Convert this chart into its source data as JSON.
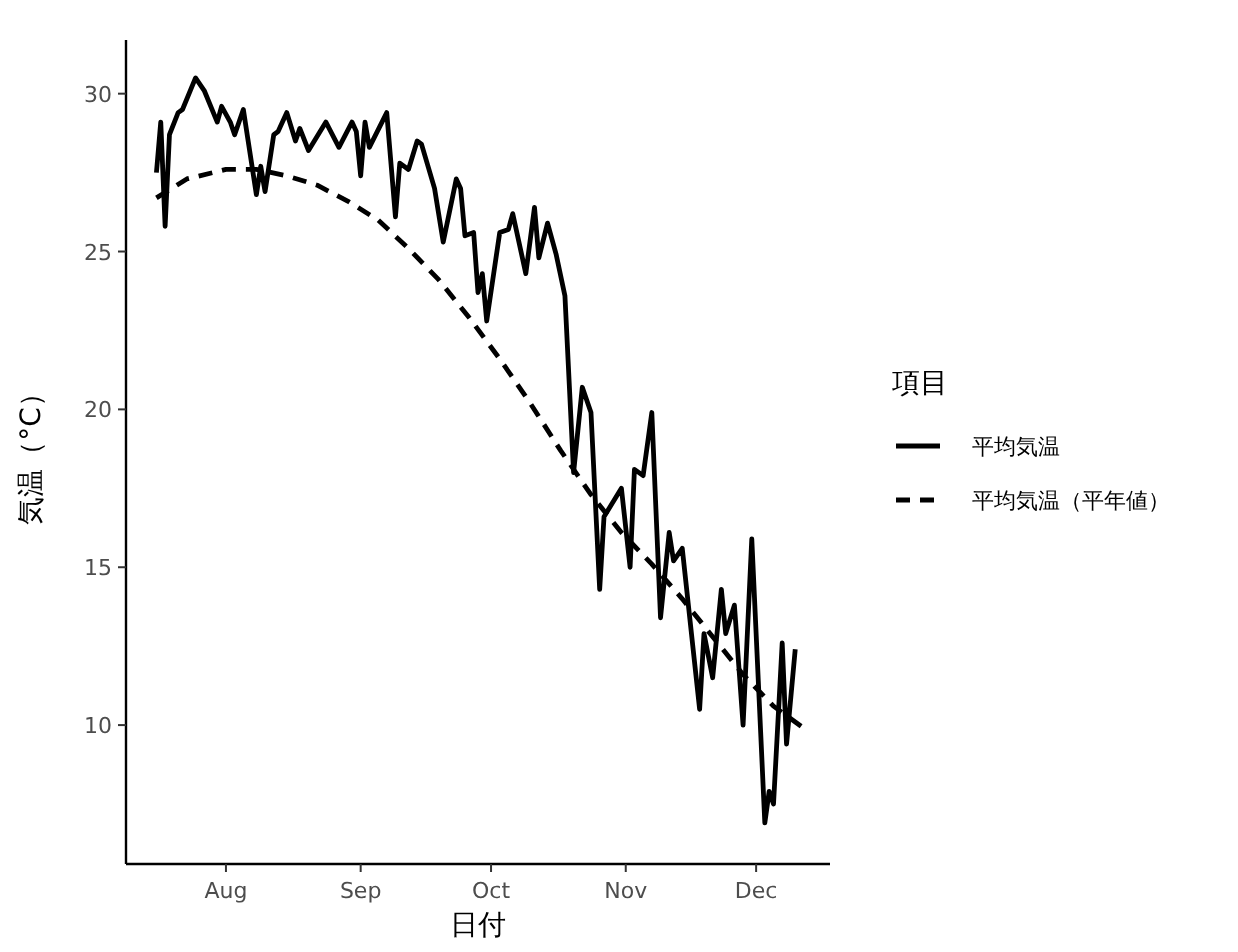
{
  "chart_data": {
    "type": "line",
    "xlabel": "日付",
    "ylabel": "気温（°C）",
    "legend_title": "項目",
    "legend": "right",
    "grid": false,
    "marker": "none",
    "xlim": [
      "--07-09",
      "--12-18"
    ],
    "xticks": [
      {
        "value": "--08-01",
        "label": "Aug"
      },
      {
        "value": "--09-01",
        "label": "Sep"
      },
      {
        "value": "--10-01",
        "label": "Oct"
      },
      {
        "value": "--11-01",
        "label": "Nov"
      },
      {
        "value": "--12-01",
        "label": "Dec"
      }
    ],
    "ylim": [
      5.6,
      31.7
    ],
    "yticks": [
      10,
      15,
      20,
      25,
      30
    ],
    "series": [
      {
        "name": "平均気温",
        "color": "#000000",
        "line_style": "solid",
        "x": [
          "--07-16",
          "--07-17",
          "--07-18",
          "--07-19",
          "--07-21",
          "--07-22",
          "--07-25",
          "--07-27",
          "--07-30",
          "--07-31",
          "--08-02",
          "--08-03",
          "--08-05",
          "--08-06",
          "--08-08",
          "--08-09",
          "--08-10",
          "--08-12",
          "--08-13",
          "--08-15",
          "--08-17",
          "--08-18",
          "--08-20",
          "--08-24",
          "--08-27",
          "--08-30",
          "--08-31",
          "--09-01",
          "--09-02",
          "--09-03",
          "--09-07",
          "--09-09",
          "--09-10",
          "--09-12",
          "--09-14",
          "--09-15",
          "--09-18",
          "--09-20",
          "--09-23",
          "--09-24",
          "--09-25",
          "--09-27",
          "--09-28",
          "--09-29",
          "--09-30",
          "--10-03",
          "--10-05",
          "--10-06",
          "--10-09",
          "--10-11",
          "--10-12",
          "--10-14",
          "--10-16",
          "--10-18",
          "--10-20",
          "--10-22",
          "--10-24",
          "--10-26",
          "--10-27",
          "--10-31",
          "--11-02",
          "--11-03",
          "--11-05",
          "--11-07",
          "--11-09",
          "--11-11",
          "--11-12",
          "--11-14",
          "--11-18",
          "--11-19",
          "--11-21",
          "--11-23",
          "--11-24",
          "--11-26",
          "--11-28",
          "--11-30",
          "--12-03",
          "--12-04",
          "--12-05",
          "--12-07",
          "--12-08",
          "--12-10"
        ],
        "values": [
          27.5,
          29.1,
          25.8,
          28.7,
          29.4,
          29.5,
          30.5,
          30.1,
          29.1,
          29.6,
          29.1,
          28.7,
          29.5,
          28.6,
          26.8,
          27.7,
          26.9,
          28.7,
          28.8,
          29.4,
          28.5,
          28.9,
          28.2,
          29.1,
          28.3,
          29.1,
          28.8,
          27.4,
          29.1,
          28.3,
          29.4,
          26.1,
          27.8,
          27.6,
          28.5,
          28.4,
          27.0,
          25.3,
          27.3,
          27.0,
          25.5,
          25.6,
          23.7,
          24.3,
          22.8,
          25.6,
          25.7,
          26.2,
          24.3,
          26.4,
          24.8,
          25.9,
          24.9,
          23.6,
          18.0,
          20.7,
          19.9,
          14.3,
          16.6,
          17.5,
          15.0,
          18.1,
          17.9,
          19.9,
          13.4,
          16.1,
          15.2,
          15.6,
          10.5,
          12.9,
          11.5,
          14.3,
          12.9,
          13.8,
          10.0,
          15.9,
          6.9,
          7.9,
          7.5,
          12.6,
          9.4,
          12.4
        ]
      },
      {
        "name": "平均気温（平年値）",
        "color": "#000000",
        "line_style": "dashed",
        "x": [
          "--07-16",
          "--07-23",
          "--08-01",
          "--08-08",
          "--08-15",
          "--08-22",
          "--08-29",
          "--09-05",
          "--09-12",
          "--09-19",
          "--09-26",
          "--10-03",
          "--10-10",
          "--10-17",
          "--10-24",
          "--10-31",
          "--11-07",
          "--11-14",
          "--11-21",
          "--11-28",
          "--12-05",
          "--12-12"
        ],
        "values": [
          26.7,
          27.3,
          27.6,
          27.6,
          27.4,
          27.1,
          26.6,
          26.0,
          25.1,
          24.1,
          22.9,
          21.6,
          20.2,
          18.7,
          17.3,
          16.1,
          15.1,
          14.0,
          12.8,
          11.6,
          10.6,
          9.9
        ]
      }
    ]
  }
}
